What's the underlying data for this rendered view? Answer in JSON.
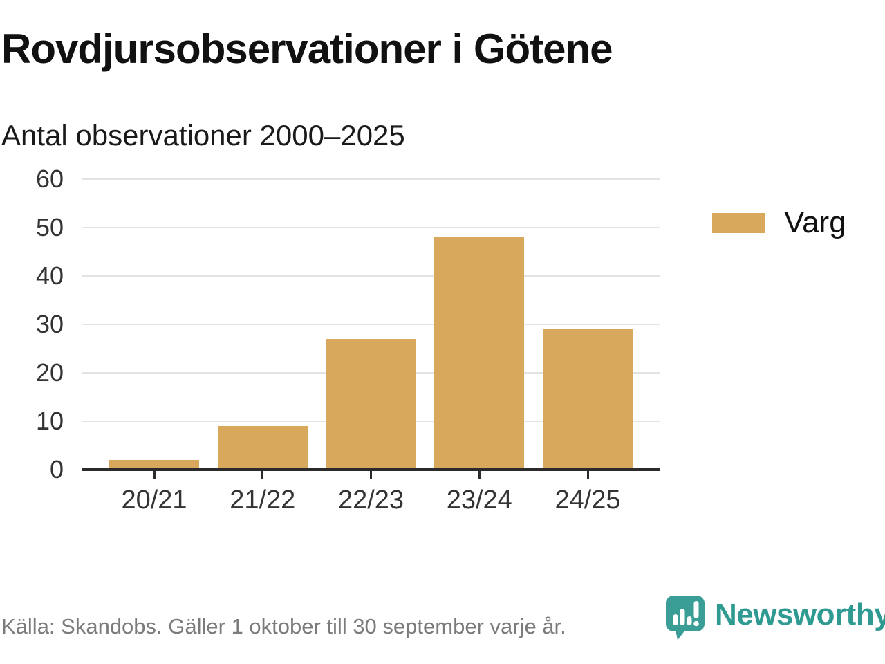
{
  "header": {
    "title": "Rovdjursobservationer i Götene",
    "subtitle": "Antal observationer 2000–2025"
  },
  "chart_data": {
    "type": "bar",
    "title": "Rovdjursobservationer i Götene",
    "subtitle": "Antal observationer 2000–2025",
    "categories": [
      "20/21",
      "21/22",
      "22/23",
      "23/24",
      "24/25"
    ],
    "series": [
      {
        "name": "Varg",
        "values": [
          2,
          9,
          27,
          48,
          29
        ]
      }
    ],
    "xlabel": "",
    "ylabel": "",
    "ylim": [
      0,
      60
    ],
    "ytick_step": 10,
    "yticks": [
      0,
      10,
      20,
      30,
      40,
      50,
      60
    ],
    "grid": true,
    "legend_position": "right",
    "bar_color": "#d8a95c"
  },
  "legend": {
    "label": "Varg",
    "swatch_color": "#d8a95c"
  },
  "footer": {
    "source": "Källa: Skandobs. Gäller 1 oktober till 30 september varje år.",
    "brand": "Newsworthy"
  },
  "colors": {
    "bar": "#d8a95c",
    "axis": "#2b2b2b",
    "gridline": "#e3e3e3",
    "axis_text": "#333333",
    "source_text": "#7b7b7b",
    "brand_teal": "#2f9a91",
    "brand_icon_teal": "#3a9e96"
  },
  "icons": {
    "brand": "newsworthy-speech-bubble-bar-chart-icon"
  }
}
